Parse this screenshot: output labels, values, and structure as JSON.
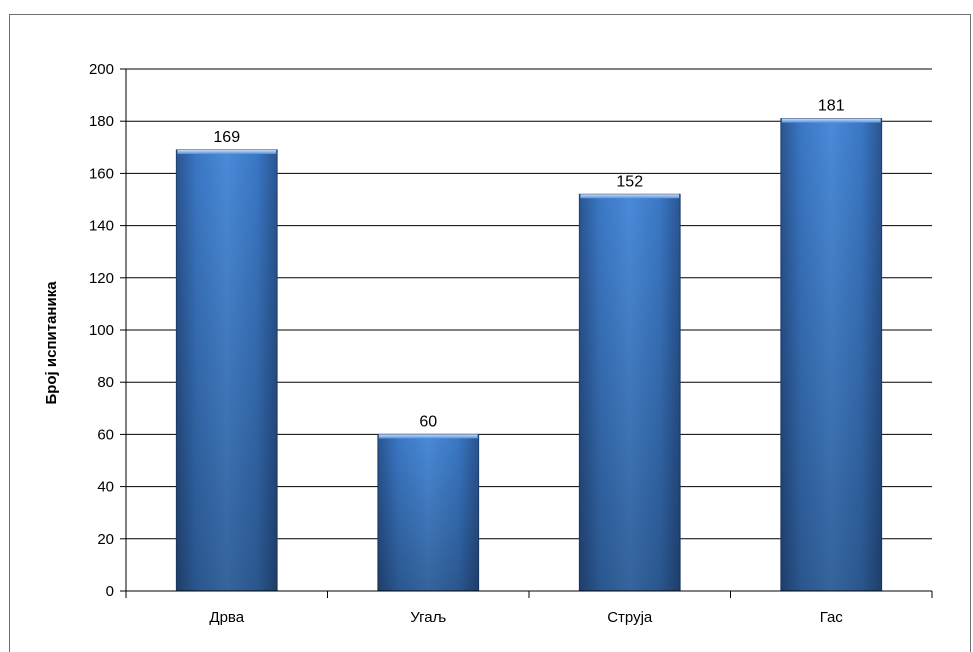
{
  "chart_data": {
    "type": "bar",
    "categories": [
      "Дрва",
      "Угаљ",
      "Струја",
      "Гас"
    ],
    "values": [
      169,
      60,
      152,
      181
    ],
    "data_labels": [
      "169",
      "60",
      "152",
      "181"
    ],
    "ylabel": "Број испитаника",
    "ylim": [
      0,
      200
    ],
    "yticks": [
      0,
      20,
      40,
      60,
      80,
      100,
      120,
      140,
      160,
      180,
      200
    ],
    "ytick_labels": [
      "0",
      "20",
      "40",
      "60",
      "80",
      "100",
      "120",
      "140",
      "160",
      "180",
      "200"
    ],
    "grid": true,
    "legend": "none",
    "bar_color": "#3f7dcc"
  }
}
